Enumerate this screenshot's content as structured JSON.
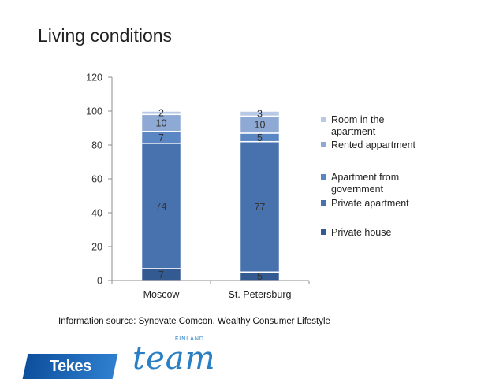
{
  "slide": {
    "title": "Living conditions",
    "source_note": "Information source: Synovate Comcon. Wealthy Consumer Lifestyle",
    "logo_tekes": "Tekes",
    "logo_team": "team",
    "logo_finland": "FINLAND"
  },
  "chart_data": {
    "type": "bar",
    "stacked": true,
    "categories": [
      "Moscow",
      "St. Petersburg"
    ],
    "series": [
      {
        "name": "Private house",
        "values": [
          7,
          5
        ],
        "color": "#345b91"
      },
      {
        "name": "Private apartment",
        "values": [
          74,
          77
        ],
        "color": "#4772ae"
      },
      {
        "name": "Apartment from government",
        "values": [
          7,
          5
        ],
        "color": "#5a86c3"
      },
      {
        "name": "Rented appartment",
        "values": [
          10,
          10
        ],
        "color": "#8ea9d3"
      },
      {
        "name": "Room in the apartment",
        "values": [
          2,
          3
        ],
        "color": "#b7c9e4"
      }
    ],
    "ylim": [
      0,
      120
    ],
    "yticks": [
      0,
      20,
      40,
      60,
      80,
      100,
      120
    ],
    "legend_position": "right",
    "legend": [
      {
        "lines": [
          "Room in the",
          "apartment"
        ],
        "color": "#b7c9e4"
      },
      {
        "lines": [
          "Rented appartment"
        ],
        "color": "#8ea9d3"
      },
      {
        "lines": [
          "Apartment from",
          "government"
        ],
        "color": "#5a86c3"
      },
      {
        "lines": [
          "Private apartment"
        ],
        "color": "#4772ae"
      },
      {
        "lines": [
          "Private house"
        ],
        "color": "#345b91"
      }
    ],
    "grid": false
  }
}
